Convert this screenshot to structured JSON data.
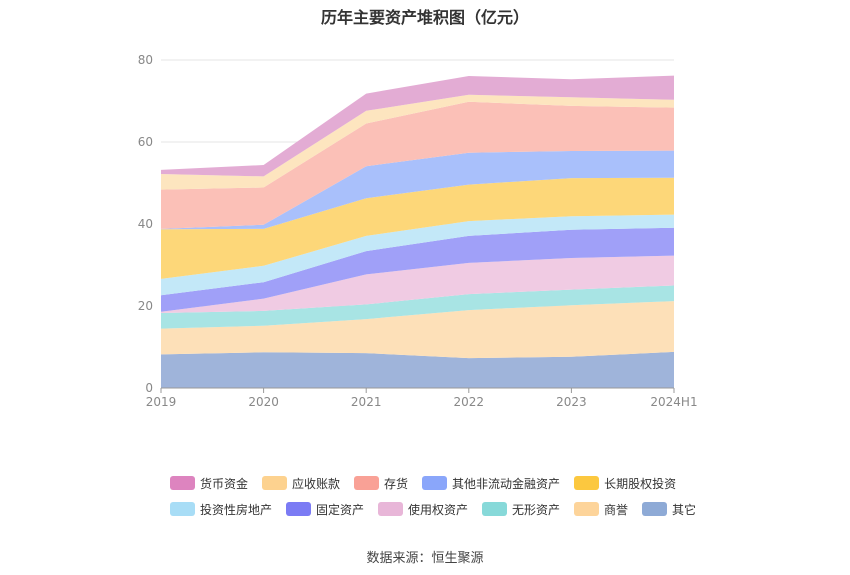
{
  "chart_data": {
    "type": "area",
    "stacked": true,
    "title": "历年主要资产堆积图（亿元）",
    "categories": [
      "2019",
      "2020",
      "2021",
      "2022",
      "2023",
      "2024H1"
    ],
    "ylim": [
      0,
      80
    ],
    "yticks": [
      0,
      20,
      40,
      60,
      80
    ],
    "grid": true,
    "legend_position": "bottom",
    "series": [
      {
        "name": "其它",
        "color": "#9fb4da",
        "values": [
          8.2,
          8.7,
          8.5,
          7.3,
          7.6,
          8.8
        ]
      },
      {
        "name": "商誉",
        "color": "#fde0b8",
        "values": [
          6.3,
          6.5,
          8.3,
          11.7,
          12.6,
          12.4
        ]
      },
      {
        "name": "无形资产",
        "color": "#a8e4e4",
        "values": [
          3.8,
          3.6,
          3.6,
          3.9,
          3.8,
          3.8
        ]
      },
      {
        "name": "使用权资产",
        "color": "#f0cbe3",
        "values": [
          0.3,
          3.0,
          7.3,
          7.6,
          7.7,
          7.3
        ]
      },
      {
        "name": "固定资产",
        "color": "#a0a0f8",
        "values": [
          4.0,
          4.0,
          5.7,
          6.6,
          6.9,
          6.8
        ]
      },
      {
        "name": "投资性房地产",
        "color": "#c3e8f8",
        "values": [
          4.0,
          4.0,
          3.7,
          3.6,
          3.3,
          3.2
        ]
      },
      {
        "name": "长期股权投资",
        "color": "#fdd779",
        "values": [
          12.1,
          9.0,
          9.2,
          8.9,
          9.3,
          9.0
        ]
      },
      {
        "name": "其他非流动金融资产",
        "color": "#a9c0fb",
        "values": [
          0.1,
          1.0,
          7.8,
          7.8,
          6.6,
          6.6
        ]
      },
      {
        "name": "存货",
        "color": "#fbc0b7",
        "values": [
          9.6,
          9.1,
          10.4,
          12.4,
          11.0,
          10.5
        ]
      },
      {
        "name": "应收账款",
        "color": "#fde5bf",
        "values": [
          3.8,
          2.7,
          3.1,
          1.7,
          2.1,
          1.9
        ]
      },
      {
        "name": "货币资金",
        "color": "#e3acd4",
        "values": [
          1.0,
          2.8,
          4.2,
          4.6,
          4.4,
          5.9
        ]
      }
    ],
    "legend": [
      {
        "name": "货币资金",
        "color": "#dd84bf"
      },
      {
        "name": "应收账款",
        "color": "#fdd28f"
      },
      {
        "name": "存货",
        "color": "#f9a196"
      },
      {
        "name": "其他非流动金融资产",
        "color": "#8aa6fa"
      },
      {
        "name": "长期股权投资",
        "color": "#fcc83f"
      },
      {
        "name": "投资性房地产",
        "color": "#a8ddf6"
      },
      {
        "name": "固定资产",
        "color": "#7b7bf4"
      },
      {
        "name": "使用权资产",
        "color": "#e8b6d8"
      },
      {
        "name": "无形资产",
        "color": "#87d9d9"
      },
      {
        "name": "商誉",
        "color": "#fdd49a"
      },
      {
        "name": "其它",
        "color": "#8eaad6"
      }
    ]
  },
  "footer": {
    "source": "数据来源：恒生聚源"
  }
}
